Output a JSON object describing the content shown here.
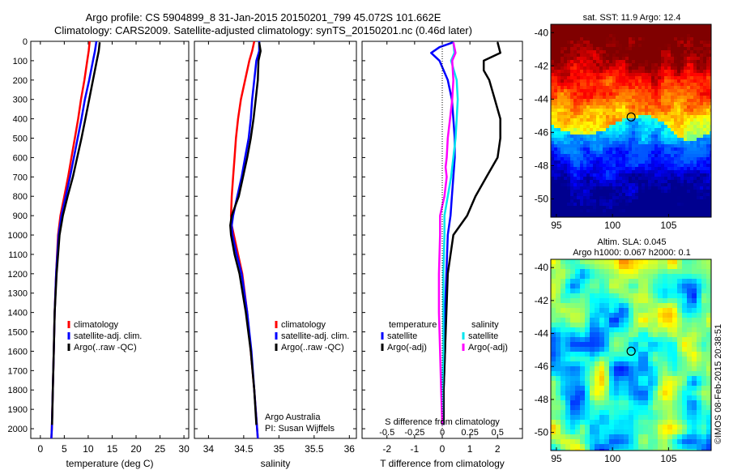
{
  "title_line1": "Argo profile: CS 5904899_8 31-Jan-2015 20150201_799 45.072S 101.662E",
  "title_line2": "Climatology: CARS2009. Satellite-adjusted climatology: synTS_20150201.nc (0.46d later)",
  "sst_title": "sat. SST: 11.9 Argo: 12.4",
  "sla_title1": "Altim. SLA: 0.045",
  "sla_title2": "Argo h1000: 0.067 h2000: 0.1",
  "credit": "©IMOS 08-Feb-2015 20:38:51",
  "argo_note1": "Argo Australia",
  "argo_note2": "PI: Susan Wijffels",
  "colors": {
    "climatology": "#ff0000",
    "satellite": "#0000ff",
    "argo": "#000000",
    "sal_sat": "#00e5ee",
    "sal_argo": "#ff00ff"
  },
  "chart_data": [
    {
      "type": "line",
      "xlabel": "temperature (deg C)",
      "xlim": [
        -2,
        31
      ],
      "ylim": [
        0,
        2050
      ],
      "y_reversed": true,
      "xticks": [
        0,
        5,
        10,
        15,
        20,
        25,
        30
      ],
      "yticks": [
        0,
        100,
        200,
        300,
        400,
        500,
        600,
        700,
        800,
        900,
        1000,
        1100,
        1200,
        1300,
        1400,
        1500,
        1600,
        1700,
        1800,
        1900,
        2000
      ],
      "legend": [
        "climatology",
        "satellite-adj. clim.",
        "Argo(..raw -QC)"
      ],
      "legend_placement": "lower-center",
      "series": [
        {
          "name": "climatology",
          "depth": [
            0,
            50,
            100,
            200,
            300,
            400,
            500,
            600,
            700,
            800,
            900,
            1000,
            1200,
            1400,
            1600,
            1800,
            2000,
            2050
          ],
          "values": [
            10.3,
            10.1,
            9.8,
            9.2,
            8.5,
            7.9,
            7.2,
            6.5,
            5.8,
            5.0,
            4.2,
            3.7,
            3.3,
            3.0,
            2.8,
            2.6,
            2.4,
            2.3
          ]
        },
        {
          "name": "satellite-adj. clim.",
          "depth": [
            0,
            50,
            100,
            200,
            300,
            400,
            500,
            600,
            700,
            800,
            900,
            1000,
            1200,
            1400,
            1600,
            1800,
            2000,
            2050
          ],
          "values": [
            11.7,
            11.4,
            11.0,
            10.2,
            9.3,
            8.6,
            7.8,
            7.0,
            6.2,
            5.3,
            4.4,
            3.8,
            3.3,
            3.0,
            2.8,
            2.6,
            2.4,
            2.3
          ]
        },
        {
          "name": "Argo(..raw -QC)",
          "depth": [
            5,
            50,
            100,
            200,
            300,
            400,
            500,
            600,
            700,
            800,
            900,
            1000,
            1200,
            1400,
            1600,
            1800,
            1980
          ],
          "values": [
            12.4,
            12.2,
            11.8,
            11.0,
            10.2,
            9.4,
            8.6,
            7.7,
            6.8,
            5.7,
            4.7,
            4.0,
            3.4,
            3.0,
            2.8,
            2.6,
            2.45
          ]
        }
      ]
    },
    {
      "type": "line",
      "xlabel": "salinity",
      "xlim": [
        33.8,
        36.1
      ],
      "ylim": [
        0,
        2050
      ],
      "y_reversed": true,
      "xticks": [
        34,
        34.5,
        35,
        35.5,
        36
      ],
      "legend": [
        "climatology",
        "satellite-adj. clim.",
        "Argo(..raw -QC)"
      ],
      "legend_placement": "lower-center",
      "series": [
        {
          "name": "climatology",
          "depth": [
            0,
            50,
            100,
            200,
            300,
            400,
            500,
            600,
            700,
            800,
            900,
            950,
            1000,
            1100,
            1200,
            1400,
            1600,
            1800,
            2000,
            2050
          ],
          "values": [
            34.65,
            34.62,
            34.58,
            34.52,
            34.46,
            34.42,
            34.39,
            34.37,
            34.35,
            34.33,
            34.32,
            34.33,
            34.36,
            34.42,
            34.48,
            34.55,
            34.6,
            34.65,
            34.69,
            34.7
          ]
        },
        {
          "name": "satellite-adj. clim.",
          "depth": [
            0,
            50,
            100,
            200,
            300,
            400,
            500,
            600,
            700,
            800,
            900,
            950,
            1000,
            1100,
            1200,
            1400,
            1600,
            1800,
            2000,
            2050
          ],
          "values": [
            34.72,
            34.72,
            34.68,
            34.65,
            34.62,
            34.6,
            34.57,
            34.52,
            34.47,
            34.41,
            34.35,
            34.33,
            34.34,
            34.4,
            34.47,
            34.55,
            34.61,
            34.65,
            34.69,
            34.7
          ]
        },
        {
          "name": "Argo(..raw -QC)",
          "depth": [
            5,
            50,
            100,
            200,
            300,
            400,
            500,
            600,
            700,
            800,
            850,
            900,
            950,
            1000,
            1100,
            1200,
            1400,
            1600,
            1800,
            1980
          ],
          "values": [
            34.72,
            34.74,
            34.71,
            34.7,
            34.67,
            34.64,
            34.6,
            34.55,
            34.49,
            34.43,
            34.38,
            34.33,
            34.31,
            34.32,
            34.37,
            34.44,
            34.53,
            34.6,
            34.65,
            34.68
          ]
        }
      ]
    },
    {
      "type": "line",
      "xlabel": "T difference from climatology",
      "xlabel_top": "S difference from climatology",
      "xlim": [
        -2.9,
        2.9
      ],
      "xlim_top": [
        -0.725,
        0.725
      ],
      "ylim": [
        0,
        2050
      ],
      "y_reversed": true,
      "xticks": [
        -2,
        -1,
        0,
        1,
        2
      ],
      "xticks_top": [
        "-0.5",
        "-0.25",
        "0",
        "0.25",
        "0.5"
      ],
      "legend_groups": [
        {
          "heading": "temperature",
          "entries": [
            "satellite",
            "Argo(-adj)"
          ]
        },
        {
          "heading": "salinity",
          "entries": [
            "satellite",
            "Argo(-adj)"
          ]
        }
      ],
      "series": [
        {
          "name": "temperature satellite",
          "depth": [
            5,
            30,
            60,
            100,
            200,
            300,
            400,
            500,
            600,
            700,
            800,
            900,
            1000,
            1200,
            1400,
            1600,
            1800,
            1980
          ],
          "values": [
            0.4,
            -0.1,
            -0.4,
            -0.1,
            0.2,
            0.35,
            0.4,
            0.45,
            0.45,
            0.4,
            0.35,
            0.3,
            0.2,
            0.15,
            0.1,
            0.1,
            0.05,
            0.05
          ]
        },
        {
          "name": "temperature Argo(-adj)",
          "depth": [
            5,
            60,
            100,
            150,
            200,
            300,
            400,
            500,
            600,
            700,
            800,
            900,
            1000,
            1200,
            1400,
            1600,
            1800,
            1980
          ],
          "values": [
            2.0,
            2.1,
            1.5,
            1.5,
            1.7,
            1.9,
            2.1,
            2.1,
            2.0,
            1.6,
            1.2,
            0.9,
            0.4,
            0.2,
            0.15,
            0.1,
            0.05,
            0.05
          ]
        },
        {
          "name": "salinity satellite",
          "depth": [
            5,
            60,
            100,
            200,
            300,
            400,
            500,
            600,
            700,
            800,
            900,
            1000,
            1200,
            1400,
            1600,
            1800,
            1980
          ],
          "values": [
            0.1,
            0.11,
            0.08,
            0.13,
            0.14,
            0.13,
            0.12,
            0.1,
            0.08,
            0.05,
            0.02,
            0.02,
            0.01,
            0.01,
            0.01,
            0.0,
            0.0
          ]
        },
        {
          "name": "salinity Argo(-adj)",
          "depth": [
            5,
            60,
            100,
            200,
            300,
            400,
            500,
            600,
            650,
            700,
            800,
            900,
            1000,
            1200,
            1400,
            1600,
            1800,
            1980
          ],
          "values": [
            0.1,
            0.12,
            0.09,
            0.1,
            0.09,
            0.07,
            0.05,
            0.04,
            0.03,
            0.04,
            0.02,
            -0.02,
            -0.02,
            -0.03,
            -0.03,
            -0.02,
            -0.01,
            0.0
          ]
        }
      ]
    },
    {
      "type": "heatmap",
      "title": "sat. SST: 11.9 Argo: 12.4",
      "xticks": [
        95,
        100,
        105
      ],
      "yticks": [
        -40,
        -42,
        -44,
        -46,
        -48,
        -50
      ],
      "xlim": [
        94.5,
        108.8
      ],
      "ylim": [
        -51.1,
        -39.5
      ],
      "marker": {
        "lon": 101.662,
        "lat": -45.072
      }
    },
    {
      "type": "heatmap",
      "title": "Altim. SLA: 0.045",
      "xticks": [
        95,
        100,
        105
      ],
      "yticks": [
        -40,
        -42,
        -44,
        -46,
        -48,
        -50
      ],
      "xlim": [
        94.5,
        108.8
      ],
      "ylim": [
        -51.1,
        -39.5
      ],
      "marker": {
        "lon": 101.662,
        "lat": -45.072
      }
    }
  ]
}
